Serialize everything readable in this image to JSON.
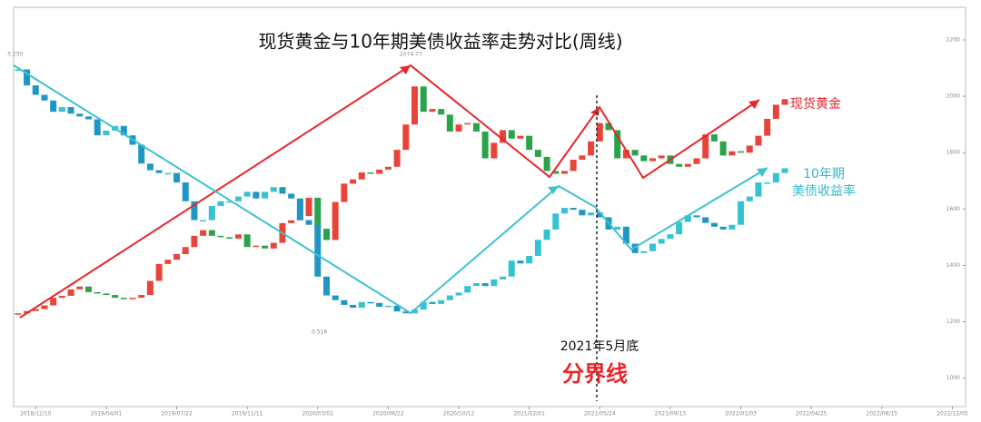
{
  "chart_data": {
    "type": "candlestick",
    "title": "现货黄金与10年期美债收益率走势对比(周线)",
    "annotations": [
      "2074.77",
      "0.516",
      "3.230",
      "2021年5月底",
      "分界线"
    ],
    "xlim": [
      -5,
      211
    ],
    "xticks": [
      {
        "value": 0,
        "label": "2018/12/10"
      },
      {
        "value": 16,
        "label": "2019/04/01"
      },
      {
        "value": 32,
        "label": "2019/07/22"
      },
      {
        "value": 48,
        "label": "2019/11/11"
      },
      {
        "value": 64,
        "label": "2020/03/02"
      },
      {
        "value": 80,
        "label": "2020/06/22"
      },
      {
        "value": 96,
        "label": "2020/10/12"
      },
      {
        "value": 112,
        "label": "2021/02/01"
      },
      {
        "value": 128,
        "label": "2021/05/24"
      },
      {
        "value": 144,
        "label": "2021/09/13"
      },
      {
        "value": 160,
        "label": "2022/01/03"
      },
      {
        "value": 176,
        "label": "2022/04/25"
      },
      {
        "value": 192,
        "label": "2022/08/15"
      },
      {
        "value": 208,
        "label": "2022/12/05"
      }
    ],
    "ylim": [
      899,
      2316
    ],
    "yticks": [
      1000,
      1200,
      1400,
      1600,
      1800,
      2000,
      2200
    ],
    "y2lim": [
      -0.43,
      3.81
    ],
    "x": [
      -4,
      -2,
      0,
      2,
      4,
      6,
      8,
      10,
      12,
      14,
      16,
      18,
      20,
      22,
      24,
      26,
      28,
      30,
      32,
      34,
      36,
      38,
      40,
      42,
      44,
      46,
      48,
      50,
      52,
      54,
      56,
      58,
      60,
      62,
      64,
      66,
      68,
      70,
      72,
      74,
      76,
      78,
      80,
      82,
      84,
      86,
      88,
      90,
      92,
      94,
      96,
      98,
      100,
      102,
      104,
      106,
      108,
      110,
      112,
      114,
      116,
      118,
      120,
      122,
      124,
      126,
      128,
      130,
      132,
      134,
      136,
      138,
      140,
      142,
      144,
      146,
      148,
      150,
      152,
      154,
      156,
      158,
      160,
      162,
      164,
      166,
      168,
      170
    ],
    "series": [
      {
        "name": "现货黄金",
        "axis": "y",
        "up_color": "#e8443a",
        "down_color": "#2aa34a",
        "values": [
          1230,
          1238,
          1245,
          1258,
          1285,
          1292,
          1315,
          1325,
          1305,
          1300,
          1295,
          1285,
          1280,
          1285,
          1295,
          1345,
          1405,
          1420,
          1440,
          1465,
          1505,
          1525,
          1505,
          1500,
          1495,
          1510,
          1465,
          1470,
          1460,
          1480,
          1550,
          1560,
          1575,
          1640,
          1530,
          1490,
          1625,
          1690,
          1705,
          1730,
          1725,
          1740,
          1750,
          1810,
          1900,
          2035,
          1945,
          1955,
          1935,
          1875,
          1900,
          1905,
          1875,
          1780,
          1835,
          1880,
          1850,
          1860,
          1810,
          1785,
          1735,
          1725,
          1735,
          1775,
          1790,
          1840,
          1905,
          1880,
          1780,
          1810,
          1790,
          1770,
          1780,
          1790,
          1760,
          1750,
          1760,
          1780,
          1865,
          1840,
          1790,
          1805,
          1800,
          1825,
          1860,
          1920,
          1970,
          1990
        ]
      },
      {
        "name": "10年期\n美债收益率",
        "axis": "y2",
        "up_color": "#35c2d2",
        "down_color": "#1f97c4",
        "values": [
          3.15,
          2.98,
          2.88,
          2.82,
          2.7,
          2.75,
          2.68,
          2.65,
          2.62,
          2.45,
          2.5,
          2.55,
          2.45,
          2.35,
          2.15,
          2.08,
          2.05,
          2.05,
          1.95,
          1.75,
          1.55,
          1.55,
          1.7,
          1.75,
          1.75,
          1.8,
          1.85,
          1.78,
          1.85,
          1.9,
          1.83,
          1.78,
          1.55,
          1.5,
          0.95,
          0.75,
          0.7,
          0.65,
          0.62,
          0.68,
          0.67,
          0.63,
          0.64,
          0.58,
          0.56,
          0.6,
          0.68,
          0.66,
          0.7,
          0.75,
          0.78,
          0.85,
          0.88,
          0.85,
          0.92,
          0.95,
          1.12,
          1.09,
          1.17,
          1.34,
          1.45,
          1.62,
          1.68,
          1.66,
          1.6,
          1.63,
          1.58,
          1.45,
          1.48,
          1.3,
          1.2,
          1.22,
          1.3,
          1.35,
          1.4,
          1.53,
          1.6,
          1.58,
          1.52,
          1.48,
          1.45,
          1.5,
          1.75,
          1.8,
          1.95,
          1.95,
          2.05,
          2.1
        ]
      }
    ]
  }
}
